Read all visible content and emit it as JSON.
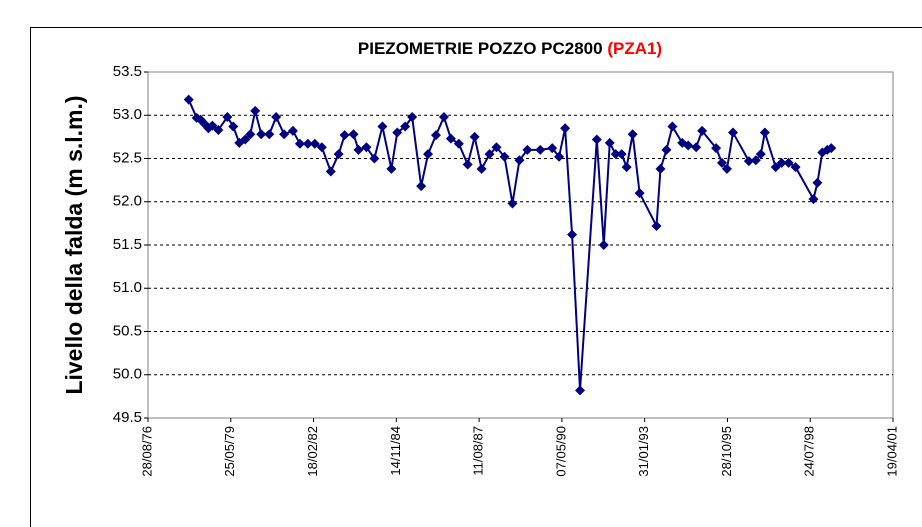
{
  "chart_data": {
    "type": "line",
    "title": "PIEZOMETRIE POZZO PC2800",
    "title_highlight": "(PZA1)",
    "ylabel": "Livello della falda (m s.l.m.)",
    "x": [
      "1978-01-02",
      "1978-04-08",
      "1978-05-25",
      "1978-07-12",
      "1978-08-28",
      "1978-10-15",
      "1978-12-26",
      "1979-04-13",
      "1979-06-24",
      "1979-09-05",
      "1979-11-16",
      "1980-01-16",
      "1980-03-15",
      "1980-05-27",
      "1980-09-01",
      "1980-11-23",
      "1981-02-27",
      "1981-06-14",
      "1981-09-06",
      "1981-12-11",
      "1982-03-05",
      "1982-05-29",
      "1982-09-14",
      "1982-12-18",
      "1983-02-28",
      "1983-06-16",
      "1983-08-15",
      "1983-11-19",
      "1984-02-23",
      "1984-05-30",
      "1984-09-15",
      "1984-11-25",
      "1985-03-01",
      "1985-05-24",
      "1985-09-10",
      "1985-12-02",
      "1986-03-08",
      "1986-06-12",
      "1986-09-04",
      "1986-12-09",
      "1987-03-26",
      "1987-06-18",
      "1987-09-10",
      "1987-12-15",
      "1988-03-08",
      "1988-06-13",
      "1988-09-17",
      "1988-12-10",
      "1989-03-16",
      "1989-08-19",
      "1990-01-10",
      "1990-04-03",
      "1990-06-15",
      "1990-09-07",
      "1990-12-12",
      "1991-07-03",
      "1991-09-25",
      "1991-12-06",
      "1992-02-16",
      "1992-04-28",
      "1992-06-27",
      "1992-09-08",
      "1992-12-01",
      "1993-06-23",
      "1993-08-10",
      "1993-10-21",
      "1994-01-01",
      "1994-04-30",
      "1994-07-11",
      "1994-10-15",
      "1994-12-26",
      "1995-06-13",
      "1995-08-23",
      "1995-10-22",
      "1996-01-03",
      "1996-07-13",
      "1996-10-05",
      "1996-12-04",
      "1997-01-22",
      "1997-06-02",
      "1997-08-13",
      "1997-11-05",
      "1998-01-28",
      "1998-09-01",
      "1998-10-19",
      "1998-12-17",
      "1999-02-15",
      "1999-04-04"
    ],
    "series": [
      {
        "name": "PC2800",
        "color": "#000080",
        "values": [
          53.18,
          52.97,
          52.95,
          52.9,
          52.85,
          52.88,
          52.83,
          52.98,
          52.87,
          52.68,
          52.72,
          52.78,
          53.05,
          52.78,
          52.78,
          52.98,
          52.78,
          52.82,
          52.67,
          52.67,
          52.67,
          52.63,
          52.35,
          52.55,
          52.77,
          52.78,
          52.6,
          52.63,
          52.5,
          52.87,
          52.38,
          52.8,
          52.87,
          52.98,
          52.18,
          52.55,
          52.77,
          52.98,
          52.73,
          52.67,
          52.43,
          52.75,
          52.38,
          52.55,
          52.63,
          52.52,
          51.98,
          52.48,
          52.6,
          52.6,
          52.62,
          52.52,
          52.85,
          51.62,
          49.82,
          52.72,
          51.5,
          52.68,
          52.55,
          52.55,
          52.4,
          52.78,
          52.1,
          51.72,
          52.38,
          52.6,
          52.87,
          52.68,
          52.65,
          52.63,
          52.82,
          52.62,
          52.45,
          52.38,
          52.8,
          52.47,
          52.48,
          52.55,
          52.8,
          52.4,
          52.45,
          52.45,
          52.4,
          52.03,
          52.22,
          52.57,
          52.6,
          52.62
        ]
      }
    ],
    "xlim": [
      "1976-08-28",
      "2001-04-19"
    ],
    "xticks": [
      {
        "value": "1976-08-28",
        "label": "28/08/76"
      },
      {
        "value": "1979-05-25",
        "label": "25/05/79"
      },
      {
        "value": "1982-02-18",
        "label": "18/02/82"
      },
      {
        "value": "1984-11-14",
        "label": "14/11/84"
      },
      {
        "value": "1987-08-11",
        "label": "11/08/87"
      },
      {
        "value": "1990-05-07",
        "label": "07/05/90"
      },
      {
        "value": "1993-01-31",
        "label": "31/01/93"
      },
      {
        "value": "1995-10-28",
        "label": "28/10/95"
      },
      {
        "value": "1998-07-24",
        "label": "24/07/98"
      },
      {
        "value": "2001-04-19",
        "label": "19/04/01"
      }
    ],
    "ylim": [
      49.5,
      53.5
    ],
    "yticks": [
      49.5,
      {
        "value": 50,
        "label": "50.0"
      },
      50.5,
      {
        "value": 51,
        "label": "51.0"
      },
      51.5,
      {
        "value": 52,
        "label": "52.0"
      },
      52.5,
      {
        "value": 53,
        "label": "53.0"
      },
      53.5
    ],
    "grid": true
  }
}
